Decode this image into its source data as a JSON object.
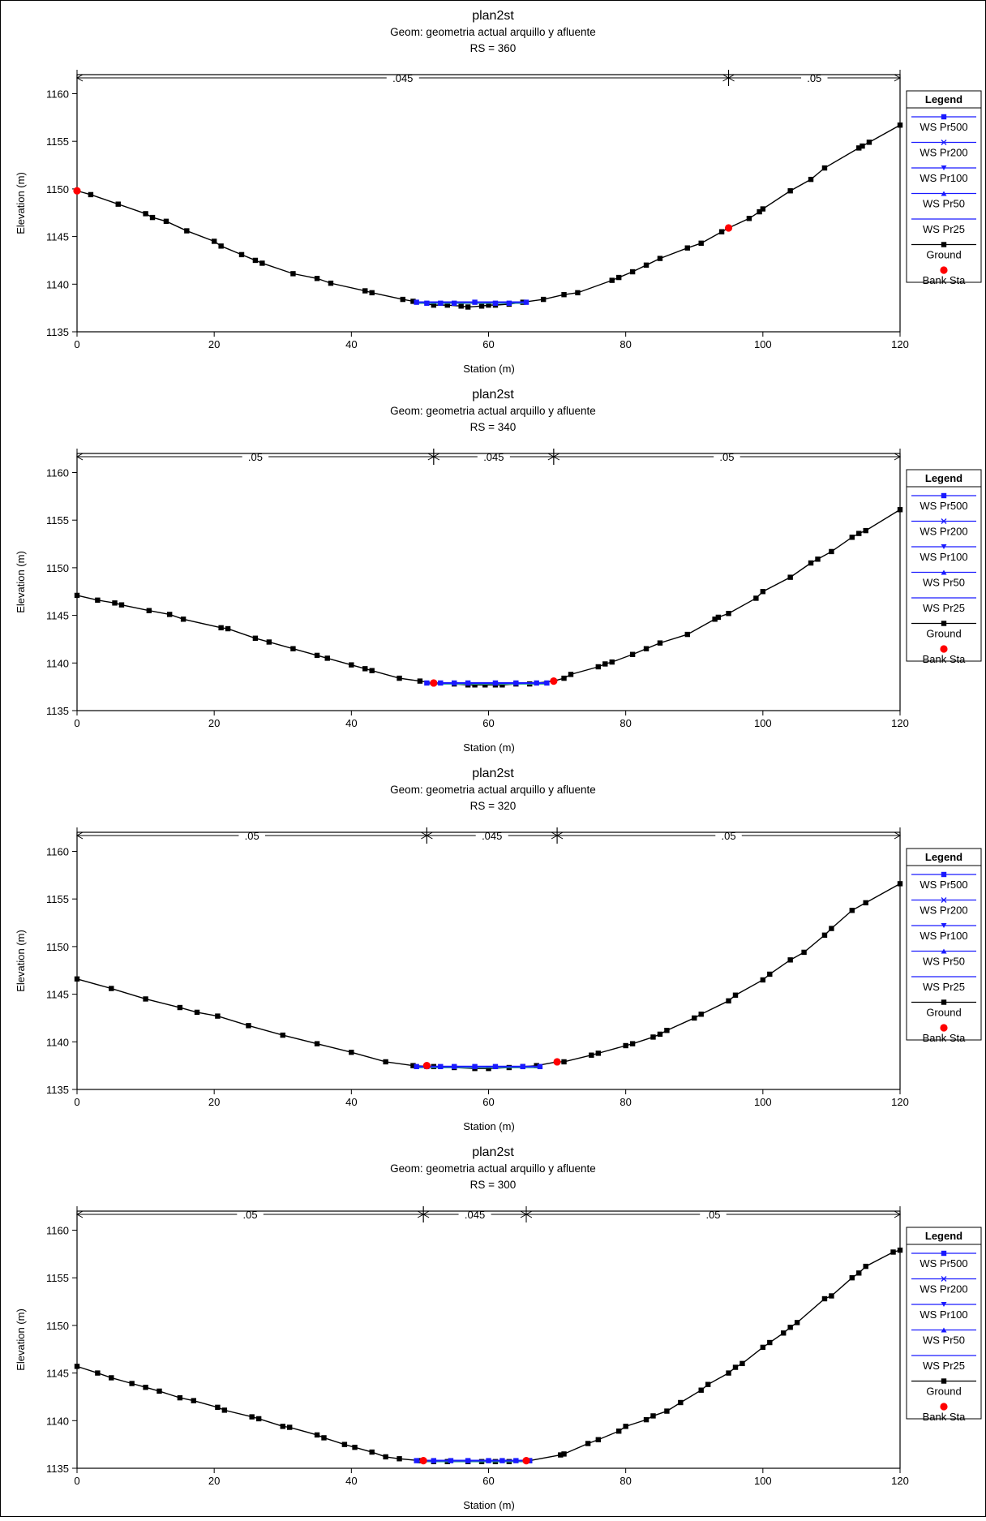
{
  "legend_title": "Legend",
  "legend_items": [
    {
      "label": "WS Pr500",
      "color": "#1a1aff",
      "marker": "square"
    },
    {
      "label": "WS Pr200",
      "color": "#1a1aff",
      "marker": "x"
    },
    {
      "label": "WS Pr100",
      "color": "#1a1aff",
      "marker": "tri-down"
    },
    {
      "label": "WS Pr50",
      "color": "#1a1aff",
      "marker": "tri-up"
    },
    {
      "label": "WS Pr25",
      "color": "#1a1aff",
      "marker": "none"
    },
    {
      "label": "Ground",
      "color": "#000000",
      "marker": "square"
    },
    {
      "label": "Bank Sta",
      "color": "#ff0000",
      "marker": "circle"
    }
  ],
  "chart_data": [
    {
      "type": "line",
      "title": "plan2st",
      "subtitle": "Geom: geometria actual arquillo y afluente",
      "rs_label": "RS = 360",
      "xlabel": "Station (m)",
      "ylabel": "Elevation (m)",
      "xlim": [
        0,
        120
      ],
      "ylim": [
        1135,
        1162
      ],
      "xticks": [
        0,
        20,
        40,
        60,
        80,
        100,
        120
      ],
      "yticks": [
        1135,
        1140,
        1145,
        1150,
        1155,
        1160
      ],
      "n_values": [
        {
          "from": 0,
          "to": 95,
          "label": ".045"
        },
        {
          "from": 95,
          "to": 120,
          "label": ".05"
        }
      ],
      "ground": [
        [
          0,
          1149.8
        ],
        [
          2,
          1149.4
        ],
        [
          6,
          1148.4
        ],
        [
          10,
          1147.4
        ],
        [
          11,
          1147.0
        ],
        [
          13,
          1146.6
        ],
        [
          16,
          1145.6
        ],
        [
          20,
          1144.5
        ],
        [
          21,
          1144.0
        ],
        [
          24,
          1143.1
        ],
        [
          26,
          1142.5
        ],
        [
          27,
          1142.2
        ],
        [
          31.5,
          1141.1
        ],
        [
          35,
          1140.6
        ],
        [
          37,
          1140.1
        ],
        [
          42,
          1139.3
        ],
        [
          43,
          1139.1
        ],
        [
          47.5,
          1138.4
        ],
        [
          49,
          1138.2
        ],
        [
          52,
          1137.8
        ],
        [
          54,
          1137.8
        ],
        [
          56,
          1137.7
        ],
        [
          57,
          1137.6
        ],
        [
          59,
          1137.7
        ],
        [
          60,
          1137.8
        ],
        [
          61,
          1137.8
        ],
        [
          63,
          1137.9
        ],
        [
          65,
          1138.1
        ],
        [
          68,
          1138.4
        ],
        [
          71,
          1138.9
        ],
        [
          73,
          1139.1
        ],
        [
          78,
          1140.4
        ],
        [
          79,
          1140.7
        ],
        [
          81,
          1141.3
        ],
        [
          83,
          1142.0
        ],
        [
          85,
          1142.7
        ],
        [
          89,
          1143.8
        ],
        [
          91,
          1144.3
        ],
        [
          94,
          1145.5
        ],
        [
          95,
          1145.9
        ],
        [
          98,
          1146.9
        ],
        [
          99.5,
          1147.6
        ],
        [
          100,
          1147.9
        ],
        [
          104,
          1149.8
        ],
        [
          107,
          1151.0
        ],
        [
          109,
          1152.2
        ],
        [
          114,
          1154.3
        ],
        [
          114.5,
          1154.5
        ],
        [
          115.5,
          1154.9
        ],
        [
          120,
          1156.7
        ]
      ],
      "bank_stations": [
        [
          0,
          1149.8
        ],
        [
          95,
          1145.9
        ]
      ],
      "ws_elevation": 1138.1,
      "ws_extent": [
        49.5,
        65.5
      ],
      "ws_points": [
        [
          49.5,
          1138.1
        ],
        [
          51,
          1138.0
        ],
        [
          53,
          1138.0
        ],
        [
          55,
          1138.0
        ],
        [
          58,
          1138.1
        ],
        [
          61,
          1138.0
        ],
        [
          63,
          1138.0
        ],
        [
          65.5,
          1138.1
        ]
      ]
    },
    {
      "type": "line",
      "title": "plan2st",
      "subtitle": "Geom: geometria actual arquillo y afluente",
      "rs_label": "RS = 340",
      "xlabel": "Station (m)",
      "ylabel": "Elevation (m)",
      "xlim": [
        0,
        120
      ],
      "ylim": [
        1135,
        1162
      ],
      "xticks": [
        0,
        20,
        40,
        60,
        80,
        100,
        120
      ],
      "yticks": [
        1135,
        1140,
        1145,
        1150,
        1155,
        1160
      ],
      "n_values": [
        {
          "from": 0,
          "to": 52,
          "label": ".05"
        },
        {
          "from": 52,
          "to": 69.5,
          "label": ".045"
        },
        {
          "from": 69.5,
          "to": 120,
          "label": ".05"
        }
      ],
      "ground": [
        [
          0,
          1147.1
        ],
        [
          3,
          1146.6
        ],
        [
          5.5,
          1146.3
        ],
        [
          6.5,
          1146.1
        ],
        [
          10.5,
          1145.5
        ],
        [
          13.5,
          1145.1
        ],
        [
          15.5,
          1144.6
        ],
        [
          21,
          1143.7
        ],
        [
          22,
          1143.6
        ],
        [
          26,
          1142.6
        ],
        [
          28,
          1142.2
        ],
        [
          31.5,
          1141.5
        ],
        [
          35,
          1140.8
        ],
        [
          36.5,
          1140.5
        ],
        [
          40,
          1139.8
        ],
        [
          42,
          1139.4
        ],
        [
          43,
          1139.2
        ],
        [
          47,
          1138.4
        ],
        [
          50,
          1138.1
        ],
        [
          52,
          1137.9
        ],
        [
          55,
          1137.8
        ],
        [
          57,
          1137.7
        ],
        [
          58,
          1137.7
        ],
        [
          59.5,
          1137.7
        ],
        [
          61,
          1137.7
        ],
        [
          62,
          1137.7
        ],
        [
          64,
          1137.8
        ],
        [
          66,
          1137.8
        ],
        [
          69.5,
          1138.1
        ],
        [
          71,
          1138.4
        ],
        [
          72,
          1138.8
        ],
        [
          76,
          1139.6
        ],
        [
          77,
          1139.9
        ],
        [
          78,
          1140.1
        ],
        [
          81,
          1140.9
        ],
        [
          83,
          1141.5
        ],
        [
          85,
          1142.1
        ],
        [
          89,
          1143.0
        ],
        [
          93,
          1144.6
        ],
        [
          93.5,
          1144.8
        ],
        [
          95,
          1145.2
        ],
        [
          99,
          1146.8
        ],
        [
          100,
          1147.5
        ],
        [
          104,
          1149.0
        ],
        [
          107,
          1150.5
        ],
        [
          108,
          1150.9
        ],
        [
          110,
          1151.7
        ],
        [
          113,
          1153.2
        ],
        [
          114,
          1153.6
        ],
        [
          115,
          1153.9
        ],
        [
          120,
          1156.1
        ]
      ],
      "bank_stations": [
        [
          52,
          1137.9
        ],
        [
          69.5,
          1138.1
        ]
      ],
      "ws_elevation": 1137.9,
      "ws_extent": [
        51,
        68.5
      ],
      "ws_points": [
        [
          51,
          1137.9
        ],
        [
          53,
          1137.9
        ],
        [
          55,
          1137.9
        ],
        [
          57,
          1137.9
        ],
        [
          61,
          1137.9
        ],
        [
          64,
          1137.9
        ],
        [
          67,
          1137.9
        ],
        [
          68.5,
          1137.9
        ]
      ]
    },
    {
      "type": "line",
      "title": "plan2st",
      "subtitle": "Geom: geometria actual arquillo y afluente",
      "rs_label": "RS = 320",
      "xlabel": "Station (m)",
      "ylabel": "Elevation (m)",
      "xlim": [
        0,
        120
      ],
      "ylim": [
        1135,
        1162
      ],
      "xticks": [
        0,
        20,
        40,
        60,
        80,
        100,
        120
      ],
      "yticks": [
        1135,
        1140,
        1145,
        1150,
        1155,
        1160
      ],
      "n_values": [
        {
          "from": 0,
          "to": 51,
          "label": ".05"
        },
        {
          "from": 51,
          "to": 70,
          "label": ".045"
        },
        {
          "from": 70,
          "to": 120,
          "label": ".05"
        }
      ],
      "ground": [
        [
          0,
          1146.6
        ],
        [
          5,
          1145.6
        ],
        [
          10,
          1144.5
        ],
        [
          15,
          1143.6
        ],
        [
          17.5,
          1143.1
        ],
        [
          20.5,
          1142.7
        ],
        [
          25,
          1141.7
        ],
        [
          30,
          1140.7
        ],
        [
          35,
          1139.8
        ],
        [
          40,
          1138.9
        ],
        [
          45,
          1137.9
        ],
        [
          49,
          1137.5
        ],
        [
          52,
          1137.4
        ],
        [
          55,
          1137.3
        ],
        [
          58,
          1137.2
        ],
        [
          60,
          1137.2
        ],
        [
          63,
          1137.3
        ],
        [
          65,
          1137.4
        ],
        [
          67,
          1137.5
        ],
        [
          70,
          1137.9
        ],
        [
          71,
          1137.9
        ],
        [
          75,
          1138.6
        ],
        [
          76,
          1138.8
        ],
        [
          80,
          1139.6
        ],
        [
          81,
          1139.8
        ],
        [
          84,
          1140.5
        ],
        [
          85,
          1140.8
        ],
        [
          86,
          1141.2
        ],
        [
          90,
          1142.5
        ],
        [
          91,
          1142.9
        ],
        [
          95,
          1144.3
        ],
        [
          96,
          1144.9
        ],
        [
          100,
          1146.5
        ],
        [
          101,
          1147.1
        ],
        [
          104,
          1148.6
        ],
        [
          106,
          1149.4
        ],
        [
          109,
          1151.2
        ],
        [
          110,
          1151.9
        ],
        [
          113,
          1153.8
        ],
        [
          115,
          1154.6
        ],
        [
          120,
          1156.6
        ]
      ],
      "bank_stations": [
        [
          51,
          1137.5
        ],
        [
          70,
          1137.9
        ]
      ],
      "ws_elevation": 1137.4,
      "ws_extent": [
        49.5,
        67.5
      ],
      "ws_points": [
        [
          49.5,
          1137.4
        ],
        [
          51,
          1137.4
        ],
        [
          53,
          1137.4
        ],
        [
          55,
          1137.4
        ],
        [
          58,
          1137.4
        ],
        [
          61,
          1137.4
        ],
        [
          65,
          1137.4
        ],
        [
          67.5,
          1137.4
        ]
      ]
    },
    {
      "type": "line",
      "title": "plan2st",
      "subtitle": "Geom: geometria actual arquillo y afluente",
      "rs_label": "RS = 300",
      "xlabel": "Station (m)",
      "ylabel": "Elevation (m)",
      "xlim": [
        0,
        120
      ],
      "ylim": [
        1135,
        1162
      ],
      "xticks": [
        0,
        20,
        40,
        60,
        80,
        100,
        120
      ],
      "yticks": [
        1135,
        1140,
        1145,
        1150,
        1155,
        1160
      ],
      "n_values": [
        {
          "from": 0,
          "to": 50.5,
          "label": ".05"
        },
        {
          "from": 50.5,
          "to": 65.5,
          "label": ".045"
        },
        {
          "from": 65.5,
          "to": 120,
          "label": ".05"
        }
      ],
      "ground": [
        [
          0,
          1145.7
        ],
        [
          3,
          1145.0
        ],
        [
          5,
          1144.5
        ],
        [
          8,
          1143.9
        ],
        [
          10,
          1143.5
        ],
        [
          12,
          1143.1
        ],
        [
          15,
          1142.4
        ],
        [
          17,
          1142.1
        ],
        [
          20.5,
          1141.4
        ],
        [
          21.5,
          1141.1
        ],
        [
          25.5,
          1140.4
        ],
        [
          26.5,
          1140.2
        ],
        [
          30,
          1139.4
        ],
        [
          31,
          1139.3
        ],
        [
          35,
          1138.5
        ],
        [
          36,
          1138.2
        ],
        [
          39,
          1137.5
        ],
        [
          40.5,
          1137.2
        ],
        [
          43,
          1136.7
        ],
        [
          45,
          1136.2
        ],
        [
          47,
          1136.0
        ],
        [
          50,
          1135.8
        ],
        [
          52,
          1135.7
        ],
        [
          54,
          1135.7
        ],
        [
          57,
          1135.7
        ],
        [
          59,
          1135.7
        ],
        [
          61,
          1135.7
        ],
        [
          63,
          1135.7
        ],
        [
          66,
          1135.8
        ],
        [
          70.5,
          1136.4
        ],
        [
          71,
          1136.5
        ],
        [
          74.5,
          1137.6
        ],
        [
          76,
          1138.0
        ],
        [
          79,
          1138.9
        ],
        [
          80,
          1139.4
        ],
        [
          83,
          1140.1
        ],
        [
          84,
          1140.5
        ],
        [
          86,
          1141.0
        ],
        [
          88,
          1141.9
        ],
        [
          91,
          1143.2
        ],
        [
          92,
          1143.8
        ],
        [
          95,
          1145.0
        ],
        [
          96,
          1145.6
        ],
        [
          97,
          1146.0
        ],
        [
          100,
          1147.7
        ],
        [
          101,
          1148.2
        ],
        [
          103,
          1149.2
        ],
        [
          104,
          1149.8
        ],
        [
          105,
          1150.3
        ],
        [
          109,
          1152.8
        ],
        [
          110,
          1153.1
        ],
        [
          113,
          1155.0
        ],
        [
          114,
          1155.5
        ],
        [
          115,
          1156.2
        ],
        [
          119,
          1157.7
        ],
        [
          120,
          1157.9
        ]
      ],
      "bank_stations": [
        [
          50.5,
          1135.8
        ],
        [
          65.5,
          1135.8
        ]
      ],
      "ws_elevation": 1135.8,
      "ws_extent": [
        49.5,
        66
      ],
      "ws_points": [
        [
          49.5,
          1135.8
        ],
        [
          52,
          1135.8
        ],
        [
          54.5,
          1135.8
        ],
        [
          57,
          1135.8
        ],
        [
          60,
          1135.8
        ],
        [
          62,
          1135.8
        ],
        [
          64,
          1135.8
        ],
        [
          66,
          1135.8
        ]
      ]
    }
  ]
}
